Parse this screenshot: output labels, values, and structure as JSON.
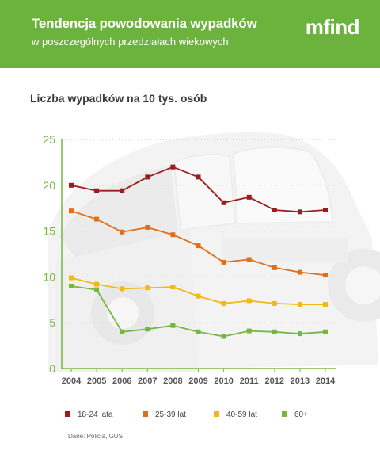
{
  "header": {
    "title": "Tendencja powodowania wypadków",
    "subtitle": "w poszczególnych przedziałach wiekowych",
    "logo": "mfind",
    "background_color": "#6cb33e"
  },
  "chart_title": "Liczba wypadków na 10 tys. osób",
  "source": "Dane: Policja, GUS",
  "chart_data": {
    "type": "line",
    "title": "Liczba wypadków na 10 tys. osób",
    "xlabel": "",
    "ylabel": "",
    "x": [
      "2004",
      "2005",
      "2006",
      "2007",
      "2008",
      "2009",
      "2010",
      "2011",
      "2012",
      "2013",
      "2014"
    ],
    "ylim": [
      0,
      25
    ],
    "yticks": [
      "0",
      "5",
      "10",
      "15",
      "20",
      "25"
    ],
    "grid": "horizontal dotted",
    "legend": "bottom",
    "background_image": "car crash photo (faded)",
    "series": [
      {
        "name": "18-24 lata",
        "color": "#9b1c1c",
        "values": [
          20.0,
          19.4,
          19.4,
          20.9,
          22.0,
          20.9,
          18.1,
          18.7,
          17.3,
          17.1,
          17.3
        ]
      },
      {
        "name": "25-39 lat",
        "color": "#e06f1b",
        "values": [
          17.2,
          16.3,
          14.9,
          15.4,
          14.6,
          13.4,
          11.6,
          11.9,
          11.0,
          10.5,
          10.2
        ]
      },
      {
        "name": "40-59 lat",
        "color": "#f2b814",
        "values": [
          9.9,
          9.2,
          8.7,
          8.8,
          8.9,
          7.9,
          7.1,
          7.4,
          7.1,
          7.0,
          7.0
        ]
      },
      {
        "name": "60+",
        "color": "#76b740",
        "values": [
          9.0,
          8.6,
          4.0,
          4.3,
          4.7,
          4.0,
          3.5,
          4.1,
          4.0,
          3.8,
          4.0
        ]
      }
    ]
  }
}
